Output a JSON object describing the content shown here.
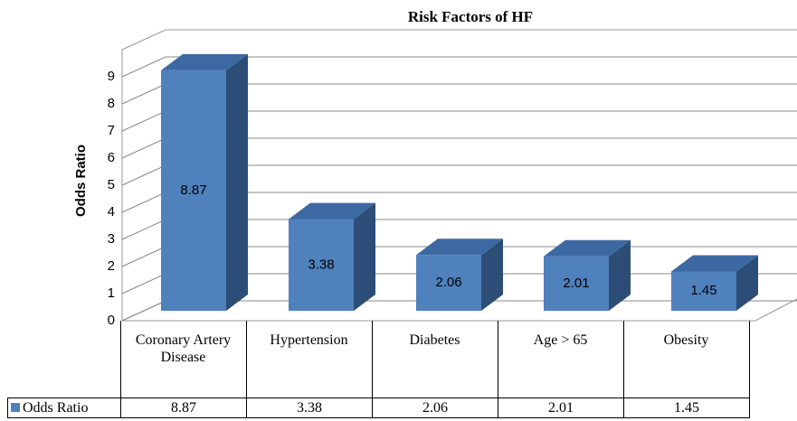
{
  "chart_data": {
    "type": "bar3d",
    "title": "Risk Factors of HF",
    "ylabel": "Odds Ratio",
    "categories": [
      "Coronary Artery Disease",
      "Hypertension",
      "Diabetes",
      "Age > 65",
      "Obesity"
    ],
    "series": [
      {
        "name": "Odds Ratio",
        "color": "#4f81bd",
        "values": [
          8.87,
          3.38,
          2.06,
          2.01,
          1.45
        ]
      }
    ],
    "ylim": [
      0,
      10
    ],
    "yticks": [
      0,
      1,
      2,
      3,
      4,
      5,
      6,
      7,
      8,
      9
    ],
    "grid": true,
    "data_table": true
  }
}
